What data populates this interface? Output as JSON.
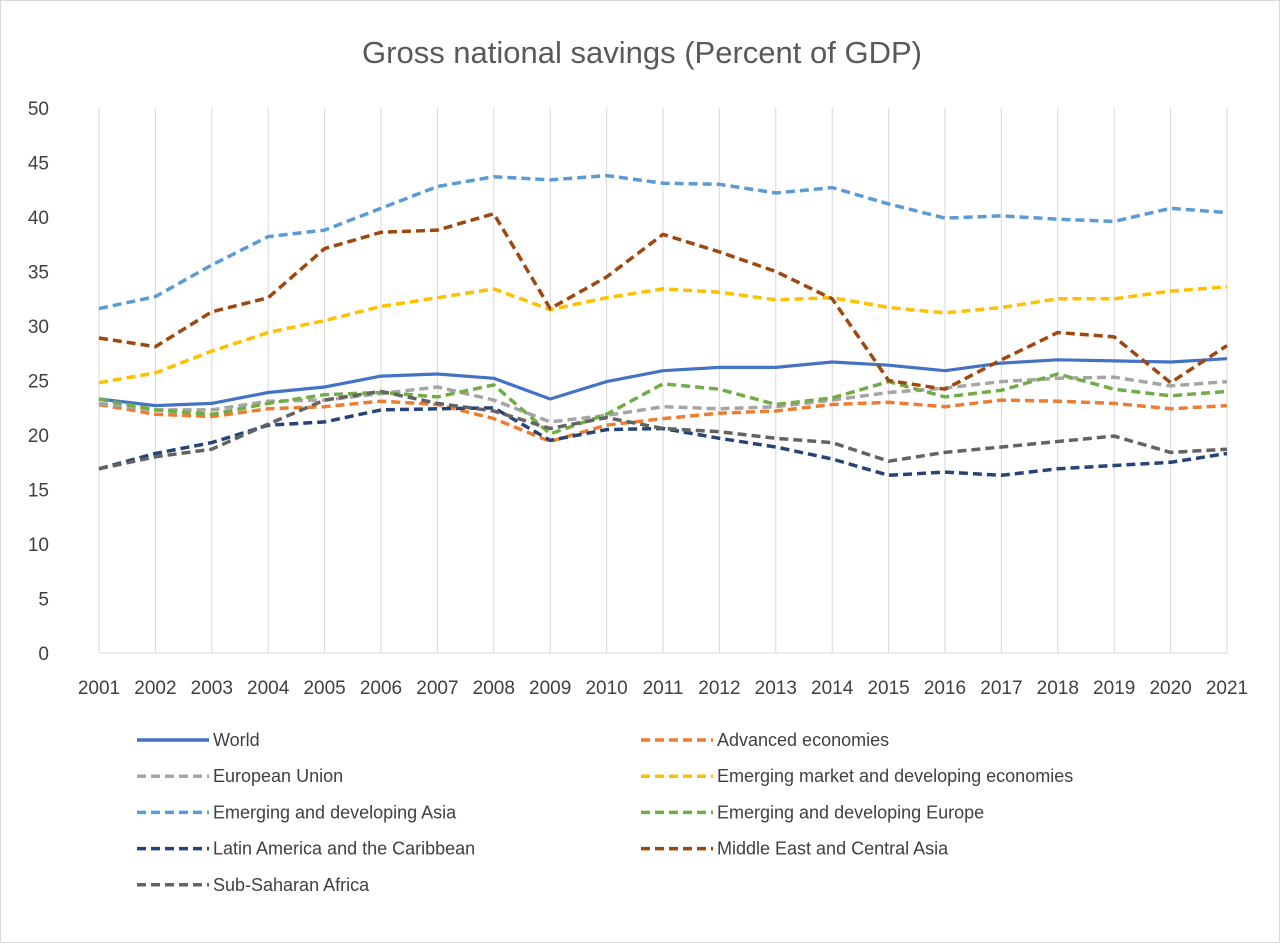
{
  "chart_data": {
    "type": "line",
    "title": "Gross national savings (Percent of GDP)",
    "xlabel": "",
    "ylabel": "",
    "ylim": [
      0,
      50
    ],
    "yticks": [
      0,
      5,
      10,
      15,
      20,
      25,
      30,
      35,
      40,
      45,
      50
    ],
    "grid": "vertical",
    "legend_position": "bottom",
    "x": [
      "2001",
      "2002",
      "2003",
      "2004",
      "2005",
      "2006",
      "2007",
      "2008",
      "2009",
      "2010",
      "2011",
      "2012",
      "2013",
      "2014",
      "2015",
      "2016",
      "2017",
      "2018",
      "2019",
      "2020",
      "2021"
    ],
    "series": [
      {
        "name": "World",
        "color": "#4472c4",
        "dash": "solid",
        "values": [
          23.3,
          22.7,
          22.9,
          23.9,
          24.4,
          25.4,
          25.6,
          25.2,
          23.3,
          24.9,
          25.9,
          26.2,
          26.2,
          26.7,
          26.4,
          25.9,
          26.6,
          26.9,
          26.8,
          26.7,
          27.0
        ]
      },
      {
        "name": "Advanced economies",
        "color": "#ed7d31",
        "dash": "dashed",
        "values": [
          22.8,
          21.9,
          21.7,
          22.4,
          22.6,
          23.1,
          22.8,
          21.5,
          19.4,
          20.9,
          21.5,
          22.0,
          22.2,
          22.8,
          23.0,
          22.6,
          23.2,
          23.1,
          22.9,
          22.4,
          22.7
        ]
      },
      {
        "name": "European Union",
        "color": "#a5a5a5",
        "dash": "dashed",
        "values": [
          22.9,
          22.3,
          22.3,
          23.1,
          23.2,
          23.8,
          24.4,
          23.2,
          21.2,
          21.8,
          22.6,
          22.4,
          22.6,
          23.2,
          23.9,
          24.3,
          24.9,
          25.2,
          25.3,
          24.5,
          24.9
        ]
      },
      {
        "name": "Emerging market and developing economies",
        "color": "#ffc000",
        "dash": "dashed",
        "values": [
          24.8,
          25.7,
          27.7,
          29.4,
          30.5,
          31.8,
          32.6,
          33.4,
          31.5,
          32.6,
          33.4,
          33.1,
          32.4,
          32.6,
          31.7,
          31.2,
          31.7,
          32.5,
          32.5,
          33.2,
          33.6
        ]
      },
      {
        "name": "Emerging and developing Asia",
        "color": "#5b9bd5",
        "dash": "dashed",
        "values": [
          31.6,
          32.7,
          35.6,
          38.2,
          38.8,
          40.8,
          42.8,
          43.7,
          43.4,
          43.8,
          43.1,
          43.0,
          42.2,
          42.7,
          41.2,
          39.9,
          40.1,
          39.8,
          39.6,
          40.8,
          40.4
        ]
      },
      {
        "name": "Emerging and developing Europe",
        "color": "#70ad47",
        "dash": "dashed",
        "values": [
          23.3,
          22.3,
          21.9,
          22.9,
          23.7,
          23.9,
          23.5,
          24.6,
          20.1,
          21.9,
          24.7,
          24.2,
          22.8,
          23.4,
          24.9,
          23.5,
          24.1,
          25.6,
          24.2,
          23.6,
          24.0
        ]
      },
      {
        "name": "Latin America and the Caribbean",
        "color": "#264478",
        "dash": "dashed",
        "values": [
          16.9,
          18.3,
          19.3,
          20.9,
          21.2,
          22.3,
          22.4,
          22.5,
          19.5,
          20.5,
          20.6,
          19.7,
          18.9,
          17.8,
          16.3,
          16.6,
          16.3,
          16.9,
          17.2,
          17.5,
          18.3
        ]
      },
      {
        "name": "Middle East and Central Asia",
        "color": "#9e480e",
        "dash": "dashed",
        "values": [
          28.9,
          28.1,
          31.3,
          32.6,
          37.1,
          38.6,
          38.8,
          40.3,
          31.6,
          34.5,
          38.4,
          36.8,
          35.0,
          32.5,
          25.0,
          24.2,
          26.9,
          29.4,
          29.0,
          24.8,
          28.2
        ]
      },
      {
        "name": "Sub-Saharan Africa",
        "color": "#636363",
        "dash": "dashed",
        "values": [
          16.9,
          18.0,
          18.7,
          21.0,
          23.2,
          24.0,
          22.9,
          22.2,
          20.6,
          21.6,
          20.6,
          20.3,
          19.7,
          19.3,
          17.6,
          18.4,
          18.9,
          19.4,
          19.9,
          18.4,
          18.7
        ]
      }
    ]
  }
}
